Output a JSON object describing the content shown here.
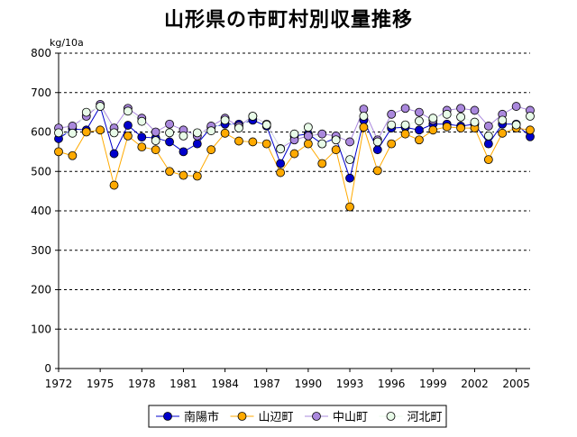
{
  "chart_data": {
    "type": "line",
    "title": "山形県の市町村別収量推移",
    "ylabel": "kg/10a",
    "xlabel": "",
    "ylim": [
      0,
      800
    ],
    "yticks": [
      0,
      100,
      200,
      300,
      400,
      500,
      600,
      700,
      800
    ],
    "xlim": [
      1972,
      2006
    ],
    "xticks": [
      1972,
      1975,
      1978,
      1981,
      1984,
      1987,
      1990,
      1993,
      1996,
      1999,
      2002,
      2005
    ],
    "grid": "horizontal dashed",
    "legend_position": "bottom",
    "x": [
      1972,
      1973,
      1974,
      1975,
      1976,
      1977,
      1978,
      1979,
      1980,
      1981,
      1982,
      1983,
      1984,
      1985,
      1986,
      1987,
      1988,
      1989,
      1990,
      1991,
      1992,
      1993,
      1994,
      1995,
      1996,
      1997,
      1998,
      1999,
      2000,
      2001,
      2002,
      2003,
      2004,
      2005,
      2006
    ],
    "series": [
      {
        "name": "南陽市",
        "color": "#0000cc",
        "values": [
          583,
          608,
          605,
          665,
          545,
          617,
          587,
          585,
          575,
          550,
          570,
          612,
          620,
          620,
          630,
          615,
          520,
          590,
          595,
          570,
          585,
          483,
          630,
          555,
          610,
          612,
          605,
          620,
          620,
          615,
          620,
          570,
          620,
          620,
          588
        ]
      },
      {
        "name": "山辺町",
        "color": "#ffaa00",
        "values": [
          550,
          540,
          600,
          605,
          465,
          590,
          562,
          555,
          500,
          490,
          488,
          555,
          597,
          577,
          575,
          570,
          497,
          545,
          570,
          520,
          555,
          410,
          612,
          502,
          570,
          595,
          580,
          605,
          613,
          610,
          610,
          530,
          597,
          610,
          605
        ]
      },
      {
        "name": "中山町",
        "color": "#aa88dd",
        "values": [
          610,
          615,
          640,
          670,
          610,
          660,
          635,
          600,
          620,
          605,
          590,
          615,
          635,
          615,
          640,
          620,
          558,
          580,
          590,
          595,
          590,
          575,
          658,
          580,
          645,
          660,
          650,
          630,
          655,
          660,
          655,
          615,
          645,
          665,
          655
        ]
      },
      {
        "name": "河北町",
        "color": "#e8fbe8",
        "values": [
          598,
          597,
          650,
          665,
          598,
          653,
          627,
          578,
          598,
          590,
          598,
          603,
          630,
          610,
          640,
          618,
          557,
          595,
          612,
          570,
          580,
          530,
          640,
          575,
          618,
          618,
          628,
          635,
          645,
          638,
          625,
          590,
          630,
          618,
          640
        ]
      }
    ]
  }
}
